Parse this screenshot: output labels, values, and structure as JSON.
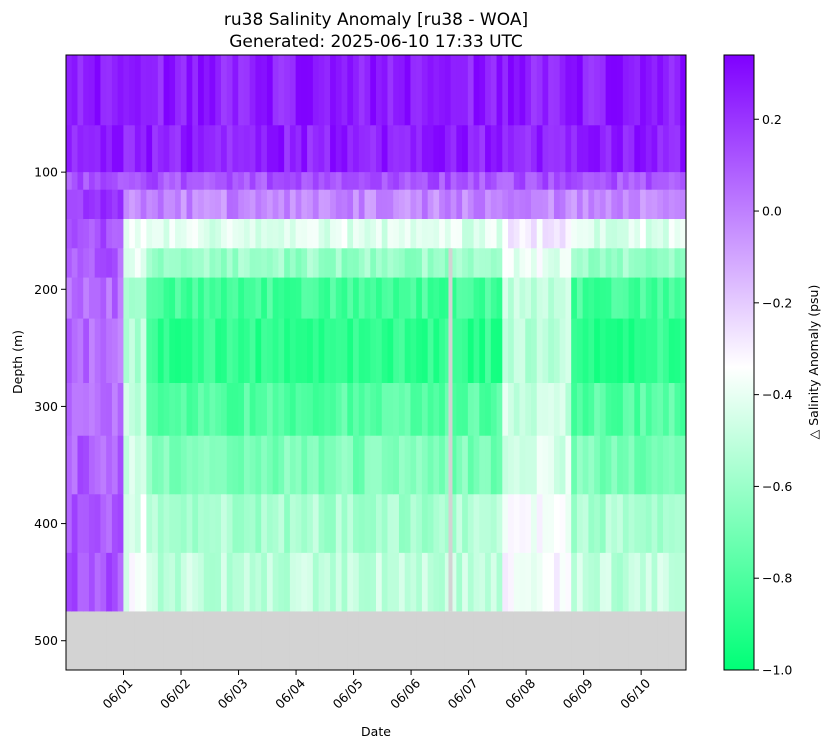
{
  "chart_data": {
    "type": "heatmap",
    "title": "ru38 Salinity Anomaly [ru38 - WOA]",
    "subtitle": "Generated: 2025-06-10 17:33 UTC",
    "xlabel": "Date",
    "ylabel": "Depth (m)",
    "colorbar_label": "△ Salinity Anomaly (psu)",
    "x_ticks": [
      "06/01",
      "06/02",
      "06/03",
      "06/04",
      "06/05",
      "06/06",
      "06/07",
      "06/08",
      "06/09",
      "06/10"
    ],
    "y_ticks": [
      "100",
      "200",
      "300",
      "400",
      "500"
    ],
    "y_tick_values": [
      100,
      200,
      300,
      400,
      500
    ],
    "colorbar_ticks": [
      "0.2",
      "0.0",
      "−0.2",
      "−0.4",
      "−0.6",
      "−0.8",
      "−1.0"
    ],
    "colorbar_tick_values": [
      0.2,
      0.0,
      -0.2,
      -0.4,
      -0.6,
      -0.8,
      -1.0
    ],
    "clim": [
      -1.0,
      0.34
    ],
    "ylim": [
      525,
      0
    ],
    "colormap": {
      "low": "#00ff77",
      "mid": "#ffffff",
      "high": "#7f00ff",
      "nodata": "#d3d3d3"
    },
    "depth_bins": [
      0,
      60,
      100,
      115,
      140,
      165,
      190,
      225,
      280,
      325,
      375,
      425,
      475,
      525
    ],
    "anomaly_by_depth_bin": [
      0.26,
      0.26,
      0.12,
      -0.02,
      -0.42,
      -0.6,
      -0.82,
      -0.88,
      -0.78,
      -0.68,
      -0.56,
      -0.5,
      null
    ],
    "profile_segments": [
      {
        "start": "05/31 00:00",
        "end": "06/01 00:00",
        "note_anomaly_upper_mixed": 0.28
      },
      {
        "start": "06/01 00:00",
        "end": "06/10 18:00",
        "note_anomaly_upper_mixed": 0.24
      }
    ],
    "grid": false
  }
}
